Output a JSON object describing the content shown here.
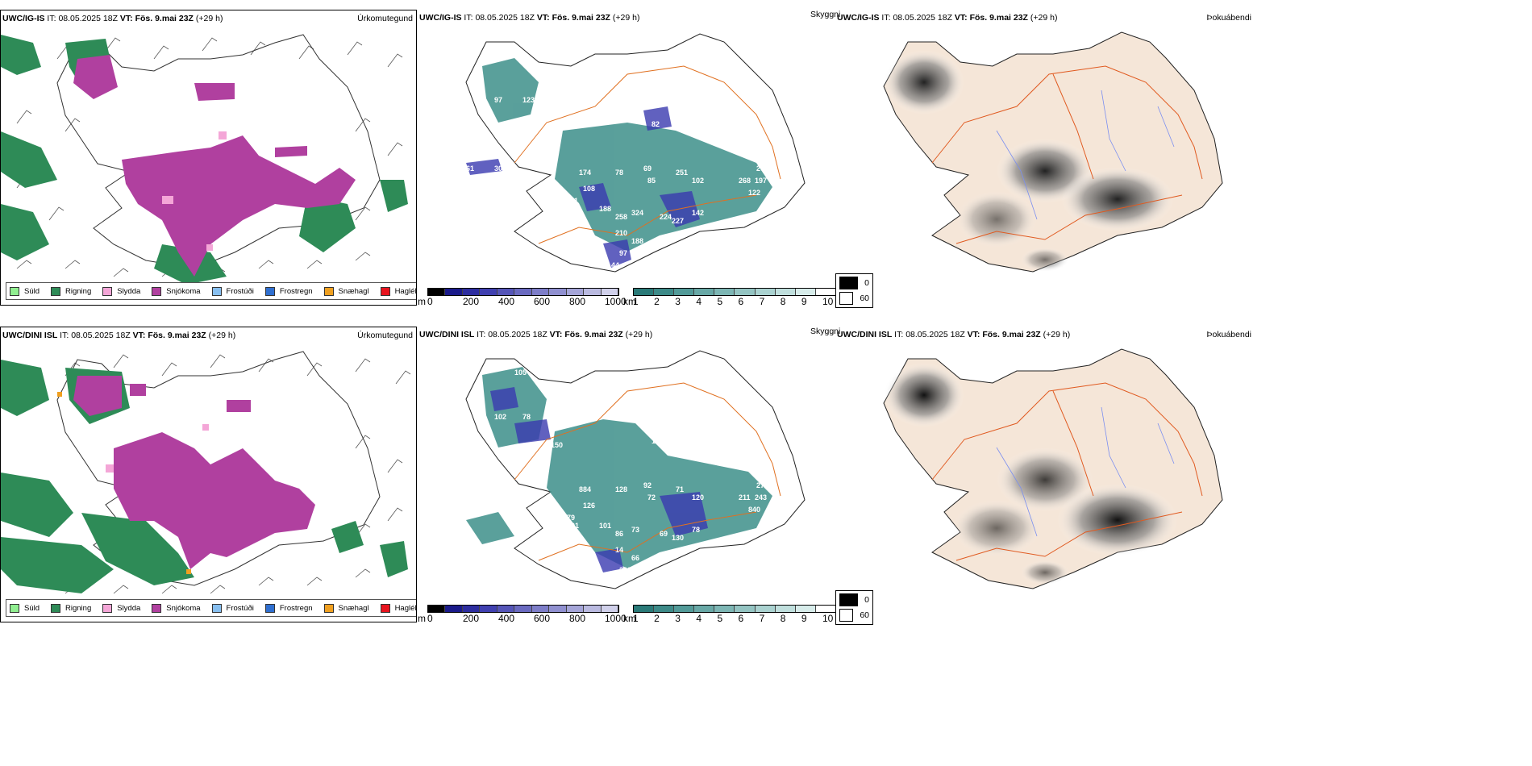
{
  "rows": [
    {
      "precip": {
        "model": "UWC/IG-IS",
        "it_label": "IT:",
        "it_value": "08.05.2025 18Z",
        "vt_label": "VT:",
        "vt_value": "Fös. 9.mai 23Z",
        "lead": "(+29 h)",
        "right_title": "Úrkomutegund"
      },
      "cloud": {
        "model": "UWC/IG-IS",
        "it_label": "IT:",
        "it_value": "08.05.2025 18Z",
        "vt_label": "VT:",
        "vt_value": "Fös. 9.mai 23Z",
        "lead": "(+29 h)",
        "numbers": [
          "272",
          "94",
          "97",
          "123",
          "82",
          "69",
          "85",
          "174",
          "78",
          "102",
          "251",
          "205",
          "197",
          "268",
          "122",
          "48",
          "111",
          "108",
          "111",
          "188",
          "258",
          "324",
          "224",
          "227",
          "142",
          "35",
          "210",
          "188",
          "97",
          "44",
          "61",
          "30"
        ]
      },
      "fog": {
        "sky_label": "Skyggni",
        "model": "UWC/IG-IS",
        "it_label": "IT:",
        "it_value": "08.05.2025 18Z",
        "vt_label": "VT:",
        "vt_value": "Fös. 9.mai 23Z",
        "lead": "(+29 h)",
        "right_title": "Þokuábendi"
      }
    },
    {
      "precip": {
        "model": "UWC/DINI ISL",
        "it_label": "IT:",
        "it_value": "08.05.2025 18Z",
        "vt_label": "VT:",
        "vt_value": "Fös. 9.mai 23Z",
        "lead": "(+29 h)",
        "right_title": "Úrkomutegund"
      },
      "cloud": {
        "model": "UWC/DINI ISL",
        "it_label": "IT:",
        "it_value": "08.05.2025 18Z",
        "vt_label": "VT:",
        "vt_value": "Fös. 9.mai 23Z",
        "lead": "(+29 h)",
        "numbers": [
          "105",
          "150",
          "102",
          "78",
          "123",
          "92",
          "72",
          "884",
          "128",
          "120",
          "71",
          "275",
          "243",
          "211",
          "840",
          "129",
          "79",
          "126",
          "401",
          "101",
          "86",
          "73",
          "69",
          "130",
          "78",
          "40",
          "14",
          "66",
          "223"
        ]
      },
      "fog": {
        "sky_label": "Skyggni",
        "model": "UWC/DINI ISL",
        "it_label": "IT:",
        "it_value": "08.05.2025 18Z",
        "vt_label": "VT:",
        "vt_value": "Fös. 9.mai 23Z",
        "lead": "(+29 h)",
        "right_title": "Þokuábendi"
      }
    }
  ],
  "precip_legend": [
    {
      "label": "Súld",
      "color": "#90ee90"
    },
    {
      "label": "Rigning",
      "color": "#2e8b57"
    },
    {
      "label": "Slydda",
      "color": "#f4a6d7"
    },
    {
      "label": "Snjókoma",
      "color": "#b0409f"
    },
    {
      "label": "Frostúði",
      "color": "#87bff0"
    },
    {
      "label": "Frostregn",
      "color": "#2f6fd0"
    },
    {
      "label": "Snæhagl",
      "color": "#f0a020"
    },
    {
      "label": "Haglél",
      "color": "#e8141e"
    }
  ],
  "cloud_base_scale": {
    "unit": "m",
    "ticks": [
      "0",
      "200",
      "400",
      "600",
      "800",
      "1000"
    ],
    "colors": [
      "#000000",
      "#1a1a8a",
      "#2d2d9f",
      "#4040b0",
      "#5555b8",
      "#6a6ac0",
      "#7d7dc8",
      "#9090d0",
      "#a5a5d8",
      "#babae0",
      "#d0d0ea"
    ]
  },
  "visibility_scale": {
    "unit": "km",
    "ticks": [
      "1",
      "2",
      "3",
      "4",
      "5",
      "6",
      "7",
      "8",
      "9",
      "10"
    ],
    "colors": [
      "#2a7a78",
      "#3d8a88",
      "#529a98",
      "#68a8a6",
      "#7db6b4",
      "#94c4c2",
      "#aad2d0",
      "#c0dfdd",
      "#d7ecea",
      "#ffffff"
    ]
  },
  "fog_legend": [
    {
      "label": "0",
      "color": "#000000"
    },
    {
      "label": "60",
      "color": "#ffffff"
    }
  ],
  "colors": {
    "rain": "#2e8b57",
    "snow": "#b0409f",
    "sleet": "#f4a6d7",
    "teal": "#3d8f8a",
    "blue": "#3a3ab0",
    "land": "#f5e6d8",
    "road": "#e07020",
    "coast": "#222222"
  }
}
